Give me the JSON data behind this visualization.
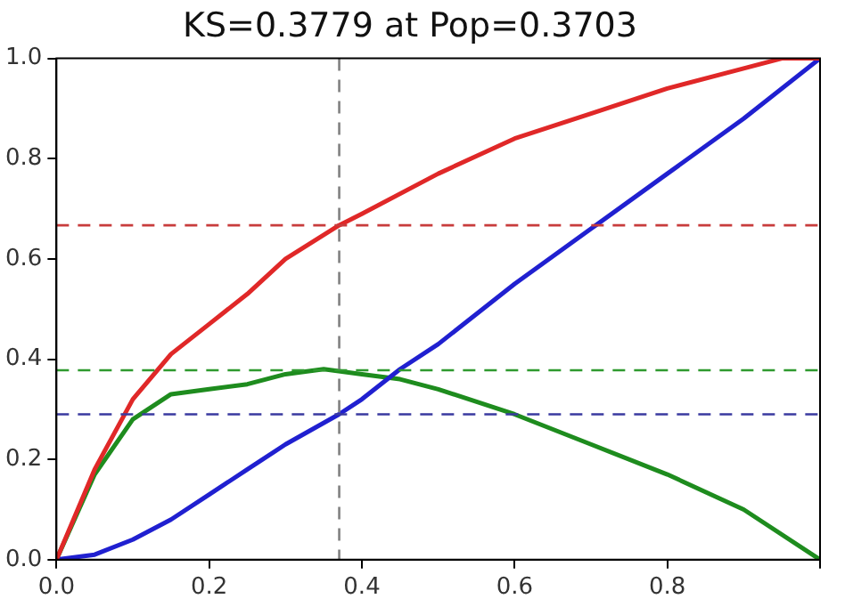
{
  "chart_data": {
    "type": "line",
    "title": "KS=0.3779 at Pop=0.3703",
    "xlim": [
      0,
      1
    ],
    "ylim": [
      0,
      1
    ],
    "xticks": [
      {
        "value": 0,
        "label": "0.0"
      },
      {
        "value": 0.2,
        "label": "0.2"
      },
      {
        "value": 0.4,
        "label": "0.4"
      },
      {
        "value": 0.6,
        "label": "0.6"
      },
      {
        "value": 0.8,
        "label": "0.8"
      },
      {
        "value": 1,
        "label": null
      }
    ],
    "yticks": [
      {
        "value": 0,
        "label": "0.0"
      },
      {
        "value": 0.2,
        "label": "0.2"
      },
      {
        "value": 0.4,
        "label": "0.4"
      },
      {
        "value": 0.6,
        "label": "0.6"
      },
      {
        "value": 0.8,
        "label": "0.8"
      },
      {
        "value": 1,
        "label": "1.0"
      }
    ],
    "grid": false,
    "legend": false,
    "marker": "none",
    "line_style": "solid",
    "series": [
      {
        "color": "#e02828",
        "x": [
          0,
          0.05,
          0.1,
          0.15,
          0.2,
          0.25,
          0.3,
          0.37,
          0.4,
          0.5,
          0.6,
          0.7,
          0.8,
          0.9,
          0.95,
          1
        ],
        "values": [
          0,
          0.18,
          0.32,
          0.41,
          0.47,
          0.53,
          0.6,
          0.667,
          0.69,
          0.77,
          0.84,
          0.89,
          0.94,
          0.98,
          1,
          1
        ]
      },
      {
        "color": "#2020d0",
        "x": [
          0,
          0.05,
          0.1,
          0.15,
          0.2,
          0.25,
          0.3,
          0.37,
          0.4,
          0.45,
          0.5,
          0.6,
          0.7,
          0.8,
          0.9,
          1
        ],
        "values": [
          0,
          0.01,
          0.04,
          0.08,
          0.13,
          0.18,
          0.23,
          0.29,
          0.32,
          0.38,
          0.43,
          0.55,
          0.66,
          0.77,
          0.88,
          1
        ]
      },
      {
        "color": "#1e8c1e",
        "x": [
          0,
          0.05,
          0.1,
          0.15,
          0.2,
          0.25,
          0.3,
          0.35,
          0.4,
          0.45,
          0.5,
          0.6,
          0.7,
          0.8,
          0.9,
          1
        ],
        "values": [
          0,
          0.17,
          0.28,
          0.33,
          0.34,
          0.35,
          0.37,
          0.38,
          0.37,
          0.36,
          0.34,
          0.29,
          0.23,
          0.17,
          0.1,
          0
        ]
      }
    ],
    "ref_lines": [
      {
        "axis": "x",
        "value": 0.3703,
        "color": "#808080",
        "line_style": "dashed"
      },
      {
        "axis": "y",
        "value": 0.667,
        "color": "#c83c3c",
        "line_style": "dashed"
      },
      {
        "axis": "y",
        "value": 0.3779,
        "color": "#2f9a2f",
        "line_style": "dashed"
      },
      {
        "axis": "y",
        "value": 0.29,
        "color": "#3a3aa0",
        "line_style": "dashed"
      }
    ]
  }
}
